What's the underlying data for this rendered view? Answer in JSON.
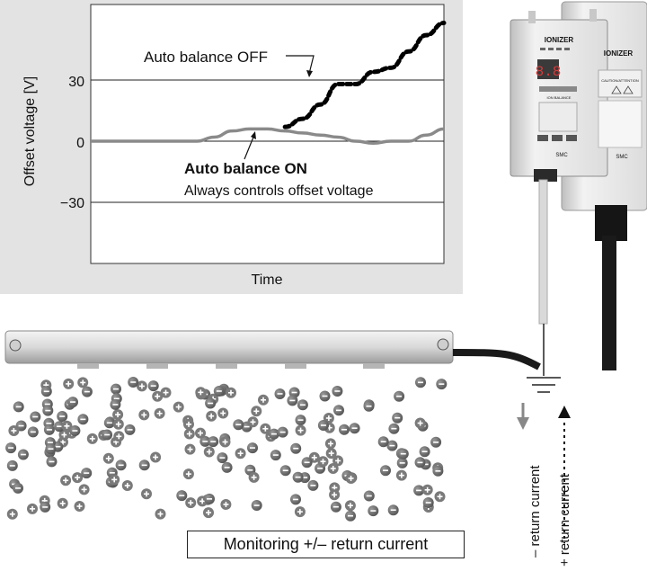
{
  "chart": {
    "ylabel": "Offset voltage [V]",
    "xlabel": "Time",
    "ticks": [
      "30",
      "0",
      "−30"
    ],
    "label_off": "Auto balance OFF",
    "label_on": "Auto balance ON",
    "label_on_sub": "Always controls offset voltage"
  },
  "chart_data": {
    "type": "line",
    "xlabel": "Time",
    "ylabel": "Offset voltage [V]",
    "yticks": [
      30,
      0,
      -30
    ],
    "ylim": [
      -42,
      58
    ],
    "series": [
      {
        "name": "Auto balance OFF",
        "style": "dotted-black",
        "x": [
          0.55,
          0.6,
          0.65,
          0.7,
          0.75,
          0.8,
          0.85,
          0.9,
          0.95,
          1.0
        ],
        "y": [
          7,
          11,
          18,
          28,
          28,
          34,
          36,
          44,
          52,
          58
        ]
      },
      {
        "name": "Auto balance ON",
        "style": "solid-gray",
        "x": [
          0.0,
          0.1,
          0.2,
          0.3,
          0.35,
          0.4,
          0.45,
          0.5,
          0.55,
          0.6,
          0.65,
          0.7,
          0.75,
          0.8,
          0.85,
          0.9,
          0.95,
          1.0
        ],
        "y": [
          0,
          0,
          0,
          0,
          2,
          5,
          6,
          6,
          5,
          4,
          3,
          2,
          0,
          -1,
          0,
          0,
          3,
          6
        ]
      }
    ]
  },
  "device": {
    "brand": "IONIZER",
    "display": "8.8",
    "caution": "CAUTION/ATTENTION",
    "logo": "SMC",
    "balance": "ION BALANCE"
  },
  "bottom": {
    "monitor_label": "Monitoring +/– return current",
    "minus_current": "– return current",
    "plus_current": "+ return current"
  },
  "colors": {
    "panel_bg": "#e3e3e3",
    "off_line": "#000000",
    "on_line": "#8a8a8a"
  }
}
